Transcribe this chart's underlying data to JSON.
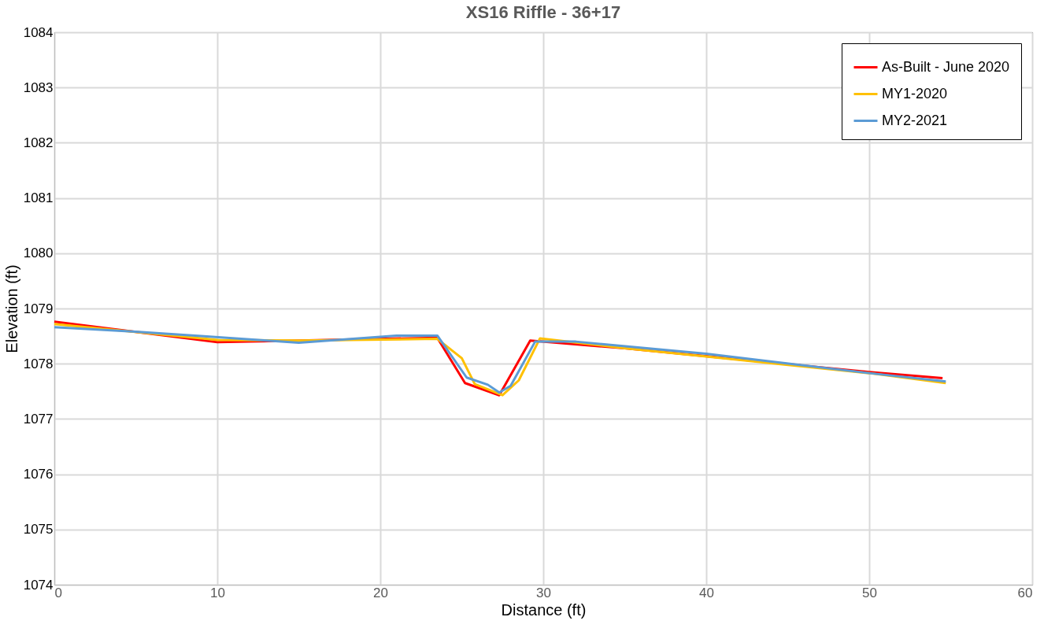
{
  "chart_data": {
    "type": "line",
    "title": "XS16 Riffle - 36+17",
    "xlabel": "Distance (ft)",
    "ylabel": "Elevation (ft)",
    "xlim": [
      0,
      60
    ],
    "xticks": [
      0,
      10,
      20,
      30,
      40,
      50,
      60
    ],
    "ylim": [
      1074,
      1084
    ],
    "yticks": [
      1074,
      1075,
      1076,
      1077,
      1078,
      1079,
      1080,
      1081,
      1082,
      1083,
      1084
    ],
    "grid": true,
    "legend": "top right",
    "marker": "none",
    "line_style": "solid",
    "series": [
      {
        "name": "As-Built - June 2020",
        "color": "#ff0000",
        "x": [
          0,
          10,
          15,
          23.5,
          25.2,
          27.3,
          29.2,
          35,
          50,
          54.5
        ],
        "values": [
          1078.76,
          1078.39,
          1078.42,
          1078.47,
          1077.65,
          1077.43,
          1078.42,
          1078.28,
          1077.85,
          1077.74
        ]
      },
      {
        "name": "MY1-2020",
        "color": "#ffc000",
        "x": [
          0,
          10,
          15,
          23.5,
          25,
          25.8,
          27.5,
          28.5,
          29.8,
          35,
          40,
          50,
          54.7
        ],
        "values": [
          1078.72,
          1078.43,
          1078.42,
          1078.45,
          1078.1,
          1077.63,
          1077.43,
          1077.7,
          1078.46,
          1078.28,
          1078.13,
          1077.83,
          1077.65
        ]
      },
      {
        "name": "MY2-2021",
        "color": "#5b9bd5",
        "x": [
          0,
          5,
          9,
          15,
          21,
          23.5,
          25.3,
          26.6,
          27.3,
          28,
          29.5,
          32,
          40,
          50,
          54.7
        ],
        "values": [
          1078.66,
          1078.58,
          1078.5,
          1078.38,
          1078.51,
          1078.51,
          1077.75,
          1077.62,
          1077.48,
          1077.6,
          1078.4,
          1078.4,
          1078.18,
          1077.83,
          1077.68
        ]
      }
    ]
  }
}
